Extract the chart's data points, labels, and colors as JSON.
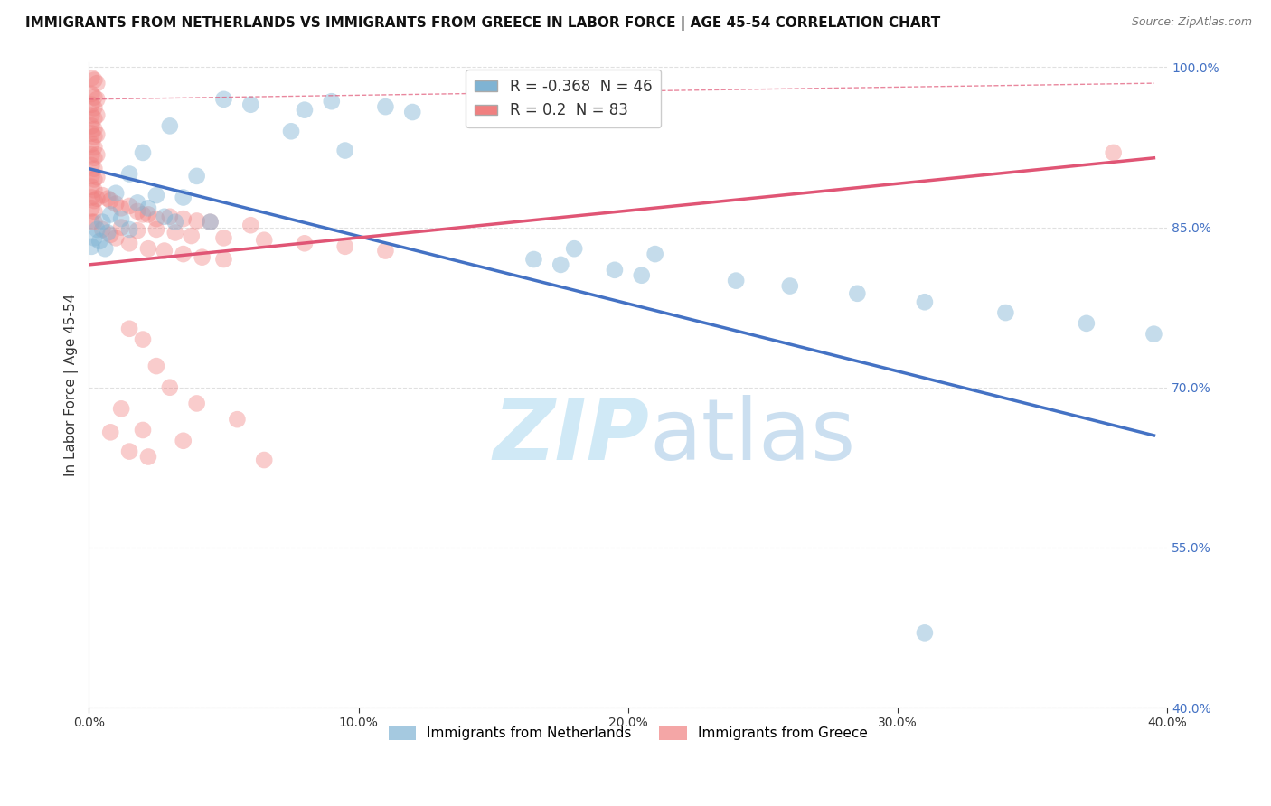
{
  "title": "IMMIGRANTS FROM NETHERLANDS VS IMMIGRANTS FROM GREECE IN LABOR FORCE | AGE 45-54 CORRELATION CHART",
  "source": "Source: ZipAtlas.com",
  "ylabel": "In Labor Force | Age 45-54",
  "xmin": 0.0,
  "xmax": 0.4,
  "ymin": 0.4,
  "ymax": 1.005,
  "yticks": [
    0.4,
    0.55,
    0.7,
    0.85,
    1.0
  ],
  "ytick_labels": [
    "40.0%",
    "55.0%",
    "70.0%",
    "85.0%",
    "100.0%"
  ],
  "xticks": [
    0.0,
    0.1,
    0.2,
    0.3,
    0.4
  ],
  "xtick_labels": [
    "0.0%",
    "10.0%",
    "20.0%",
    "30.0%",
    "40.0%"
  ],
  "watermark_zip": "ZIP",
  "watermark_atlas": "atlas",
  "netherlands_color": "#7fb3d3",
  "greece_color": "#f08080",
  "netherlands_line_color": "#4472C4",
  "greece_line_color": "#e05575",
  "netherlands_R": -0.368,
  "netherlands_N": 46,
  "greece_R": 0.2,
  "greece_N": 83,
  "netherlands_line": [
    [
      0.0,
      0.905
    ],
    [
      0.395,
      0.655
    ]
  ],
  "greece_line": [
    [
      0.0,
      0.815
    ],
    [
      0.395,
      0.915
    ]
  ],
  "dashed_line": [
    [
      0.0,
      0.97
    ],
    [
      0.395,
      0.985
    ]
  ],
  "netherlands_scatter": [
    [
      0.05,
      0.97
    ],
    [
      0.06,
      0.965
    ],
    [
      0.08,
      0.96
    ],
    [
      0.09,
      0.968
    ],
    [
      0.11,
      0.963
    ],
    [
      0.12,
      0.958
    ],
    [
      0.145,
      0.962
    ],
    [
      0.155,
      0.96
    ],
    [
      0.03,
      0.945
    ],
    [
      0.075,
      0.94
    ],
    [
      0.02,
      0.92
    ],
    [
      0.095,
      0.922
    ],
    [
      0.015,
      0.9
    ],
    [
      0.04,
      0.898
    ],
    [
      0.01,
      0.882
    ],
    [
      0.025,
      0.88
    ],
    [
      0.035,
      0.878
    ],
    [
      0.018,
      0.873
    ],
    [
      0.022,
      0.868
    ],
    [
      0.008,
      0.862
    ],
    [
      0.012,
      0.858
    ],
    [
      0.028,
      0.86
    ],
    [
      0.005,
      0.855
    ],
    [
      0.032,
      0.855
    ],
    [
      0.045,
      0.855
    ],
    [
      0.003,
      0.848
    ],
    [
      0.007,
      0.845
    ],
    [
      0.015,
      0.848
    ],
    [
      0.002,
      0.84
    ],
    [
      0.004,
      0.837
    ],
    [
      0.001,
      0.832
    ],
    [
      0.006,
      0.83
    ],
    [
      0.18,
      0.83
    ],
    [
      0.21,
      0.825
    ],
    [
      0.165,
      0.82
    ],
    [
      0.175,
      0.815
    ],
    [
      0.195,
      0.81
    ],
    [
      0.205,
      0.805
    ],
    [
      0.24,
      0.8
    ],
    [
      0.26,
      0.795
    ],
    [
      0.285,
      0.788
    ],
    [
      0.31,
      0.78
    ],
    [
      0.34,
      0.77
    ],
    [
      0.37,
      0.76
    ],
    [
      0.395,
      0.75
    ],
    [
      0.31,
      0.47
    ]
  ],
  "greece_scatter": [
    [
      0.001,
      0.99
    ],
    [
      0.002,
      0.988
    ],
    [
      0.003,
      0.985
    ],
    [
      0.001,
      0.975
    ],
    [
      0.002,
      0.972
    ],
    [
      0.003,
      0.97
    ],
    [
      0.001,
      0.965
    ],
    [
      0.002,
      0.962
    ],
    [
      0.001,
      0.955
    ],
    [
      0.002,
      0.952
    ],
    [
      0.003,
      0.955
    ],
    [
      0.001,
      0.945
    ],
    [
      0.002,
      0.942
    ],
    [
      0.001,
      0.938
    ],
    [
      0.002,
      0.935
    ],
    [
      0.003,
      0.937
    ],
    [
      0.001,
      0.928
    ],
    [
      0.002,
      0.925
    ],
    [
      0.001,
      0.918
    ],
    [
      0.002,
      0.915
    ],
    [
      0.003,
      0.918
    ],
    [
      0.001,
      0.908
    ],
    [
      0.002,
      0.905
    ],
    [
      0.001,
      0.898
    ],
    [
      0.002,
      0.895
    ],
    [
      0.003,
      0.897
    ],
    [
      0.001,
      0.888
    ],
    [
      0.002,
      0.885
    ],
    [
      0.001,
      0.878
    ],
    [
      0.002,
      0.875
    ],
    [
      0.003,
      0.877
    ],
    [
      0.001,
      0.868
    ],
    [
      0.002,
      0.865
    ],
    [
      0.001,
      0.855
    ],
    [
      0.002,
      0.855
    ],
    [
      0.015,
      0.87
    ],
    [
      0.018,
      0.865
    ],
    [
      0.022,
      0.862
    ],
    [
      0.025,
      0.858
    ],
    [
      0.03,
      0.86
    ],
    [
      0.035,
      0.858
    ],
    [
      0.008,
      0.875
    ],
    [
      0.01,
      0.872
    ],
    [
      0.012,
      0.868
    ],
    [
      0.04,
      0.856
    ],
    [
      0.005,
      0.88
    ],
    [
      0.007,
      0.877
    ],
    [
      0.02,
      0.862
    ],
    [
      0.045,
      0.855
    ],
    [
      0.06,
      0.852
    ],
    [
      0.012,
      0.85
    ],
    [
      0.018,
      0.847
    ],
    [
      0.025,
      0.848
    ],
    [
      0.032,
      0.845
    ],
    [
      0.038,
      0.842
    ],
    [
      0.05,
      0.84
    ],
    [
      0.065,
      0.838
    ],
    [
      0.08,
      0.835
    ],
    [
      0.095,
      0.832
    ],
    [
      0.11,
      0.828
    ],
    [
      0.015,
      0.835
    ],
    [
      0.022,
      0.83
    ],
    [
      0.028,
      0.828
    ],
    [
      0.035,
      0.825
    ],
    [
      0.042,
      0.822
    ],
    [
      0.05,
      0.82
    ],
    [
      0.01,
      0.84
    ],
    [
      0.005,
      0.848
    ],
    [
      0.008,
      0.843
    ],
    [
      0.38,
      0.92
    ],
    [
      0.015,
      0.755
    ],
    [
      0.02,
      0.745
    ],
    [
      0.025,
      0.72
    ],
    [
      0.03,
      0.7
    ],
    [
      0.04,
      0.685
    ],
    [
      0.055,
      0.67
    ],
    [
      0.012,
      0.68
    ],
    [
      0.02,
      0.66
    ],
    [
      0.035,
      0.65
    ],
    [
      0.008,
      0.658
    ],
    [
      0.015,
      0.64
    ],
    [
      0.022,
      0.635
    ],
    [
      0.065,
      0.632
    ]
  ],
  "background_color": "#ffffff",
  "grid_color": "#e0e0e0",
  "title_fontsize": 11,
  "axis_label_fontsize": 11,
  "tick_fontsize": 10
}
